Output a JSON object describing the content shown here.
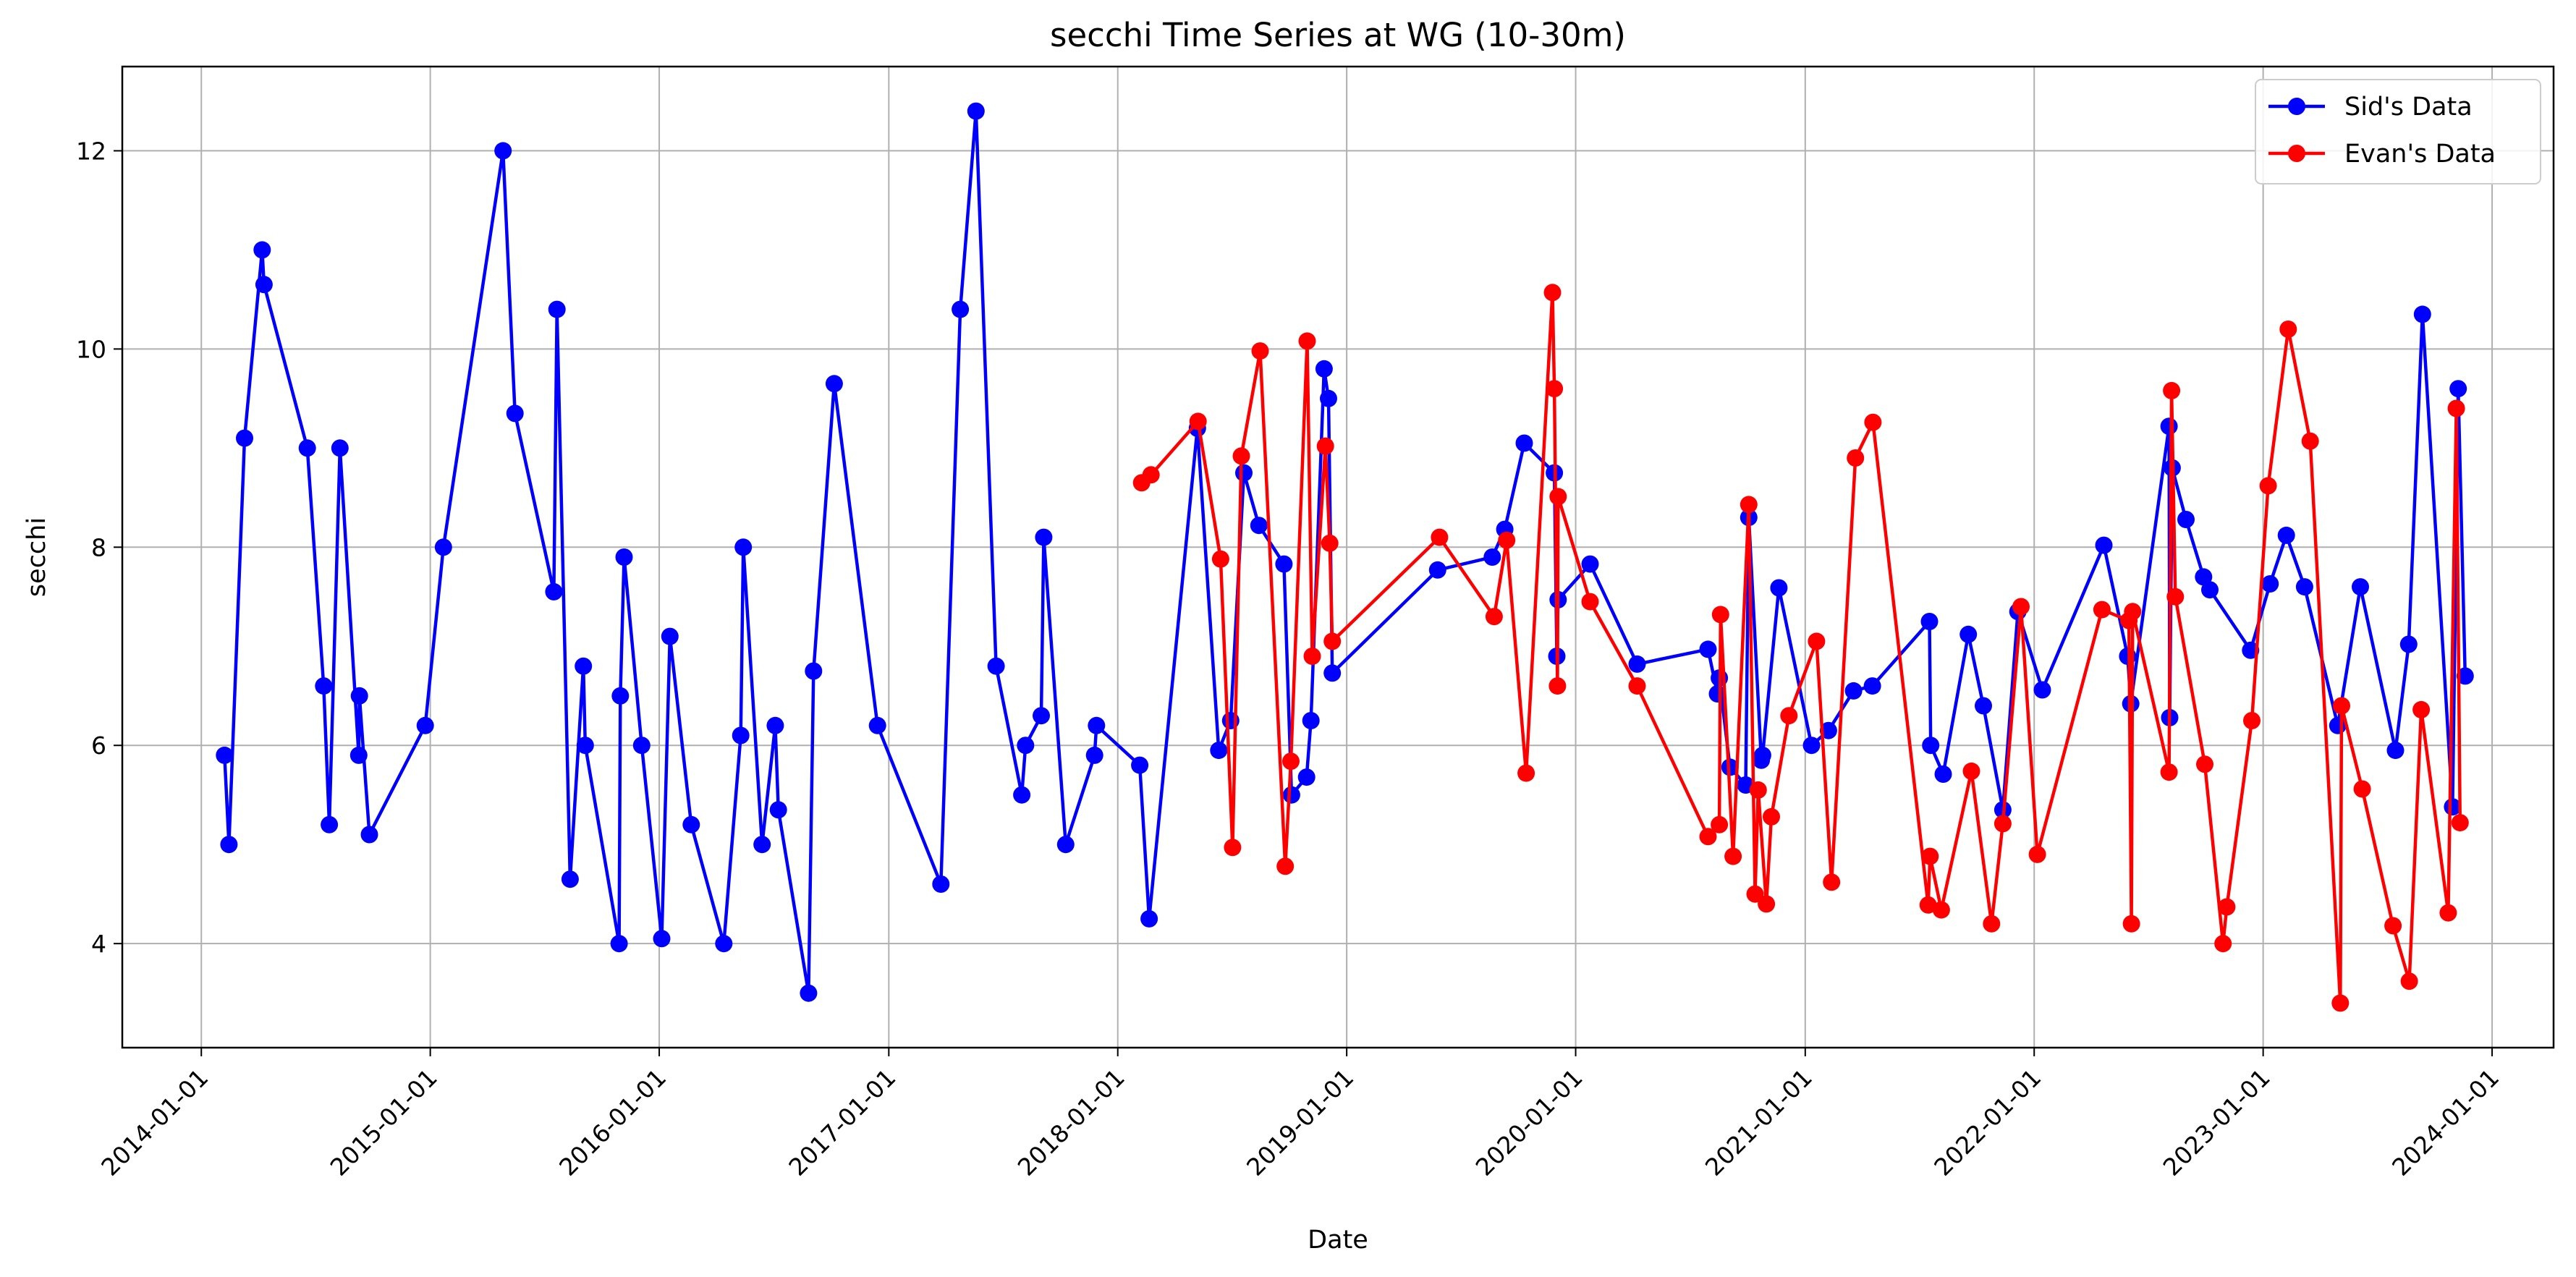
{
  "chart_data": {
    "type": "line",
    "title": "secchi Time Series at WG (10-30m)",
    "xlabel": "Date",
    "ylabel": "secchi",
    "x_type": "date",
    "xlim": [
      "2013-08-28",
      "2024-04-08"
    ],
    "ylim": [
      2.95,
      12.85
    ],
    "x_ticks": [
      "2014-01-01",
      "2015-01-01",
      "2016-01-01",
      "2017-01-01",
      "2018-01-01",
      "2019-01-01",
      "2020-01-01",
      "2021-01-01",
      "2022-01-01",
      "2023-01-01",
      "2024-01-01"
    ],
    "y_ticks": [
      4,
      6,
      8,
      10,
      12
    ],
    "grid": true,
    "legend_position": "top-right",
    "series": [
      {
        "name": "Sid's Data",
        "color": "#0000ff",
        "x": [
          "2014-02-07",
          "2014-02-14",
          "2014-03-11",
          "2014-04-08",
          "2014-04-11",
          "2014-06-19",
          "2014-07-15",
          "2014-07-24",
          "2014-08-10",
          "2014-09-09",
          "2014-09-10",
          "2014-09-26",
          "2014-12-24",
          "2015-01-22",
          "2015-04-27",
          "2015-05-16",
          "2015-07-17",
          "2015-07-22",
          "2015-08-12",
          "2015-09-02",
          "2015-09-05",
          "2015-10-29",
          "2015-10-31",
          "2015-11-06",
          "2015-12-04",
          "2016-01-05",
          "2016-01-18",
          "2016-02-21",
          "2016-04-13",
          "2016-05-10",
          "2016-05-14",
          "2016-06-13",
          "2016-07-04",
          "2016-07-09",
          "2016-08-26",
          "2016-09-03",
          "2016-10-06",
          "2016-12-14",
          "2017-03-25",
          "2017-04-25",
          "2017-05-20",
          "2017-06-21",
          "2017-08-01",
          "2017-08-07",
          "2017-09-01",
          "2017-09-05",
          "2017-10-10",
          "2017-11-25",
          "2017-11-28",
          "2018-02-05",
          "2018-02-20",
          "2018-05-08",
          "2018-06-11",
          "2018-06-30",
          "2018-07-21",
          "2018-08-14",
          "2018-09-23",
          "2018-10-05",
          "2018-10-29",
          "2018-11-05",
          "2018-11-26",
          "2018-12-03",
          "2018-12-09",
          "2019-05-26",
          "2019-08-21",
          "2019-09-10",
          "2019-10-11",
          "2019-11-28",
          "2019-12-02",
          "2019-12-04",
          "2020-01-24",
          "2020-04-08",
          "2020-07-30",
          "2020-08-14",
          "2020-08-17",
          "2020-09-03",
          "2020-09-28",
          "2020-10-03",
          "2020-10-23",
          "2020-10-25",
          "2020-11-20",
          "2021-01-11",
          "2021-02-07",
          "2021-03-19",
          "2021-04-18",
          "2021-07-18",
          "2021-07-20",
          "2021-08-09",
          "2021-09-18",
          "2021-10-12",
          "2021-11-12",
          "2021-12-06",
          "2022-01-14",
          "2022-04-22",
          "2022-05-30",
          "2022-06-04",
          "2022-08-04",
          "2022-08-05",
          "2022-08-09",
          "2022-08-31",
          "2022-09-28",
          "2022-10-08",
          "2022-12-12",
          "2023-01-12",
          "2023-02-07",
          "2023-03-08",
          "2023-04-30",
          "2023-06-05",
          "2023-07-31",
          "2023-08-21",
          "2023-09-12",
          "2023-10-30",
          "2023-11-08",
          "2023-11-19"
        ],
        "y": [
          5.9,
          5.0,
          9.1,
          11.0,
          10.65,
          9.0,
          6.6,
          5.2,
          9.0,
          5.9,
          6.5,
          5.1,
          6.2,
          8.0,
          12.0,
          9.35,
          7.55,
          10.4,
          4.65,
          6.8,
          6.0,
          4.0,
          6.5,
          7.9,
          6.0,
          4.05,
          7.1,
          5.2,
          4.0,
          6.1,
          8.0,
          5.0,
          6.2,
          5.35,
          3.5,
          6.75,
          9.65,
          6.2,
          4.6,
          10.4,
          12.4,
          6.8,
          5.5,
          6.0,
          6.3,
          8.1,
          5.0,
          5.9,
          6.2,
          5.8,
          4.25,
          9.2,
          5.95,
          6.25,
          8.75,
          8.22,
          7.83,
          5.5,
          5.68,
          6.25,
          9.8,
          9.5,
          6.73,
          7.77,
          7.9,
          8.18,
          9.05,
          8.75,
          6.9,
          7.47,
          7.83,
          6.82,
          6.97,
          6.52,
          6.68,
          5.78,
          5.6,
          8.3,
          5.85,
          5.9,
          7.59,
          6.0,
          6.15,
          6.55,
          6.6,
          7.25,
          6.0,
          5.71,
          7.12,
          6.4,
          5.35,
          7.35,
          6.56,
          8.02,
          6.9,
          6.42,
          9.22,
          6.28,
          8.8,
          8.28,
          7.7,
          7.57,
          6.96,
          7.63,
          8.12,
          7.6,
          6.2,
          7.6,
          5.95,
          7.02,
          10.35,
          5.38,
          9.6,
          6.7
        ]
      },
      {
        "name": "Evan's Data",
        "color": "#ff0000",
        "x": [
          "2018-02-08",
          "2018-02-23",
          "2018-05-09",
          "2018-06-14",
          "2018-07-03",
          "2018-07-17",
          "2018-08-16",
          "2018-09-25",
          "2018-10-04",
          "2018-10-30",
          "2018-11-07",
          "2018-11-28",
          "2018-12-05",
          "2018-12-09",
          "2019-05-29",
          "2019-08-24",
          "2019-09-13",
          "2019-10-14",
          "2019-11-25",
          "2019-11-28",
          "2019-12-03",
          "2019-12-04",
          "2020-01-24",
          "2020-04-08",
          "2020-07-30",
          "2020-08-17",
          "2020-08-19",
          "2020-09-08",
          "2020-10-03",
          "2020-10-13",
          "2020-10-18",
          "2020-10-31",
          "2020-11-08",
          "2020-12-06",
          "2021-01-19",
          "2021-02-12",
          "2021-03-22",
          "2021-04-19",
          "2021-07-16",
          "2021-07-19",
          "2021-08-06",
          "2021-09-23",
          "2021-10-25",
          "2021-11-12",
          "2021-12-11",
          "2022-01-06",
          "2022-04-19",
          "2022-06-01",
          "2022-06-05",
          "2022-06-07",
          "2022-08-04",
          "2022-08-08",
          "2022-08-14",
          "2022-09-30",
          "2022-10-29",
          "2022-11-04",
          "2022-12-14",
          "2023-01-09",
          "2023-02-10",
          "2023-03-17",
          "2023-05-04",
          "2023-05-06",
          "2023-06-08",
          "2023-07-27",
          "2023-08-22",
          "2023-09-10",
          "2023-10-23",
          "2023-11-05",
          "2023-11-11"
        ],
        "y": [
          8.65,
          8.73,
          9.27,
          7.88,
          4.97,
          8.92,
          9.98,
          4.78,
          5.84,
          10.08,
          6.9,
          9.02,
          8.04,
          7.05,
          8.1,
          7.3,
          8.07,
          5.72,
          10.57,
          9.6,
          6.6,
          8.51,
          7.45,
          6.6,
          5.08,
          5.2,
          7.32,
          4.88,
          8.43,
          4.5,
          5.55,
          4.4,
          5.28,
          6.3,
          7.05,
          4.62,
          8.9,
          9.26,
          4.39,
          4.88,
          4.34,
          5.74,
          4.2,
          5.21,
          7.4,
          4.9,
          7.37,
          7.26,
          4.2,
          7.35,
          5.73,
          9.58,
          7.5,
          5.81,
          4.0,
          4.37,
          6.25,
          8.62,
          10.2,
          9.07,
          3.4,
          6.4,
          5.56,
          4.18,
          3.62,
          6.36,
          4.31,
          9.4,
          5.22
        ]
      }
    ]
  }
}
